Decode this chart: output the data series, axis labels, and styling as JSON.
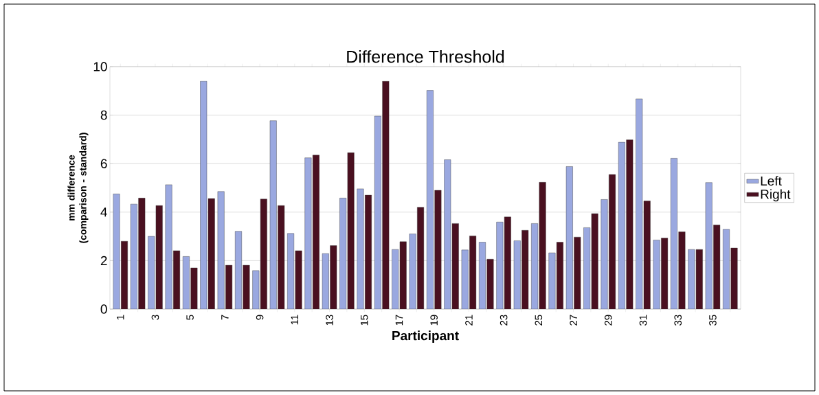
{
  "chart_data": {
    "type": "bar",
    "title": "Difference Threshold",
    "xlabel": "Participant",
    "ylabel": "mm difference (comparison - standard)",
    "categories": [
      "1",
      null,
      "3",
      null,
      "5",
      null,
      "7",
      null,
      "9",
      null,
      "11",
      null,
      "13",
      null,
      "15",
      null,
      "17",
      null,
      "19",
      null,
      "21",
      null,
      "23",
      null,
      "25",
      null,
      "27",
      null,
      "29",
      null,
      "31",
      null,
      "33",
      null,
      "35",
      null
    ],
    "series": [
      {
        "name": "Left",
        "color": "#9aa8e0",
        "values": [
          4.75,
          4.33,
          3.0,
          5.13,
          2.17,
          9.4,
          4.85,
          3.21,
          1.59,
          7.77,
          3.12,
          6.24,
          2.29,
          4.58,
          4.96,
          7.96,
          2.46,
          3.1,
          9.02,
          6.16,
          2.44,
          2.76,
          3.59,
          2.82,
          3.53,
          2.32,
          5.88,
          3.36,
          4.52,
          6.88,
          8.67,
          2.85,
          6.22,
          2.46,
          5.22,
          3.29
        ]
      },
      {
        "name": "Right",
        "color": "#4a1020",
        "values": [
          2.8,
          4.58,
          4.27,
          2.41,
          1.7,
          4.56,
          1.81,
          1.81,
          4.54,
          4.27,
          2.41,
          6.35,
          2.62,
          6.45,
          4.7,
          9.4,
          2.78,
          4.2,
          4.9,
          3.53,
          3.02,
          2.06,
          3.8,
          3.25,
          5.23,
          2.76,
          2.97,
          3.94,
          5.55,
          6.98,
          4.46,
          2.93,
          3.19,
          2.46,
          3.47,
          2.52
        ]
      }
    ],
    "ylim": [
      0,
      10
    ],
    "yticks": [
      0,
      2,
      4,
      6,
      8,
      10
    ],
    "grid": "y",
    "legend": "right"
  }
}
